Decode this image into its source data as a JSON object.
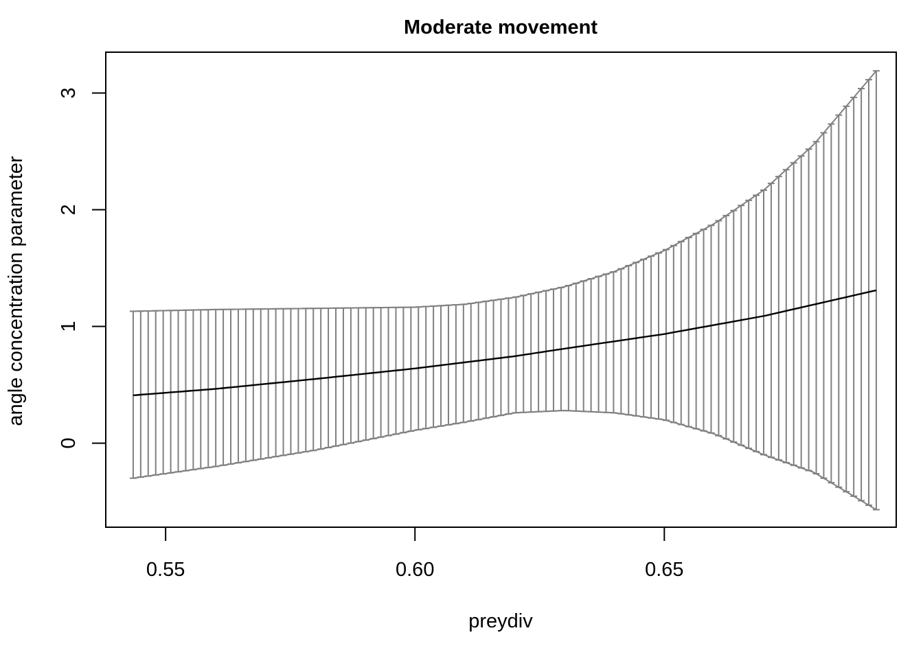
{
  "chart_data": {
    "type": "line",
    "title": "Moderate movement",
    "xlabel": "preydiv",
    "ylabel": "angle concentration parameter",
    "xlim": [
      0.538,
      0.6965
    ],
    "ylim": [
      -0.72,
      3.35
    ],
    "x_ticks": [
      0.55,
      0.6,
      0.65
    ],
    "x_tick_labels": [
      "0.55",
      "0.60",
      "0.65"
    ],
    "y_ticks": [
      0,
      1,
      2,
      3
    ],
    "y_tick_labels": [
      "0",
      "1",
      "2",
      "3"
    ],
    "x_range": [
      0.5435,
      0.6925
    ],
    "n_points": 100,
    "series": [
      {
        "role": "estimate",
        "color": "#000000",
        "x": [
          0.5435,
          0.56,
          0.58,
          0.6,
          0.62,
          0.63,
          0.65,
          0.67,
          0.6925
        ],
        "values": [
          0.41,
          0.465,
          0.55,
          0.64,
          0.745,
          0.81,
          0.935,
          1.09,
          1.31
        ]
      },
      {
        "role": "upper",
        "color": "#808080",
        "x": [
          0.5435,
          0.56,
          0.58,
          0.6,
          0.61,
          0.62,
          0.63,
          0.64,
          0.65,
          0.66,
          0.67,
          0.68,
          0.6925
        ],
        "values": [
          1.13,
          1.145,
          1.155,
          1.165,
          1.19,
          1.25,
          1.34,
          1.47,
          1.65,
          1.88,
          2.17,
          2.56,
          3.19
        ]
      },
      {
        "role": "lower",
        "color": "#808080",
        "x": [
          0.5435,
          0.56,
          0.58,
          0.6,
          0.61,
          0.62,
          0.63,
          0.64,
          0.65,
          0.66,
          0.67,
          0.68,
          0.6925
        ],
        "values": [
          -0.3,
          -0.2,
          -0.06,
          0.11,
          0.18,
          0.26,
          0.28,
          0.26,
          0.2,
          0.08,
          -0.1,
          -0.25,
          -0.57
        ]
      }
    ]
  }
}
